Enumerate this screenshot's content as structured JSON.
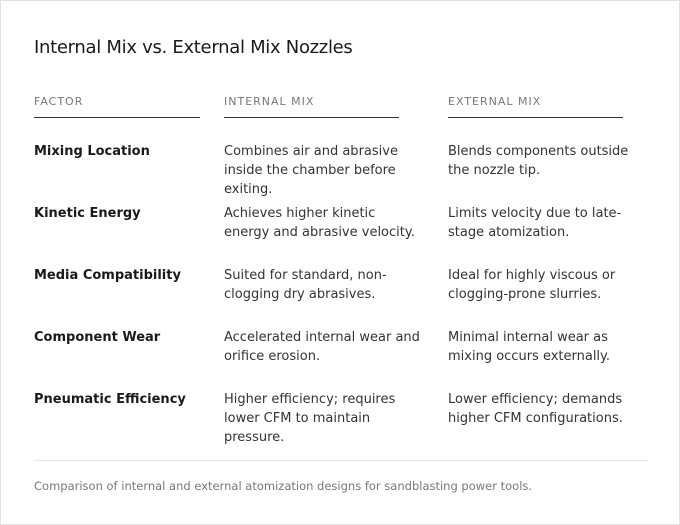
{
  "title": "Internal Mix vs. External Mix Nozzles",
  "table": {
    "headers": [
      "FACTOR",
      "INTERNAL MIX",
      "EXTERNAL MIX"
    ],
    "rows": [
      [
        "Mixing Location",
        "Combines air and abrasive inside the chamber before exiting.",
        "Blends components outside the nozzle tip."
      ],
      [
        "Kinetic Energy",
        "Achieves higher kinetic energy and abrasive velocity.",
        "Limits velocity due to late-stage atomization."
      ],
      [
        "Media Compatibility",
        "Suited for standard, non-clogging dry abrasives.",
        "Ideal for highly viscous or clogging-prone slurries."
      ],
      [
        "Component Wear",
        "Accelerated internal wear and orifice erosion.",
        "Minimal internal wear as mixing occurs externally."
      ],
      [
        "Pneumatic Efficiency",
        "Higher efficiency; requires lower CFM to maintain pressure.",
        "Lower efficiency; demands higher CFM configurations."
      ]
    ]
  },
  "caption": "Comparison of internal and external atomization designs for sandblasting power tools."
}
